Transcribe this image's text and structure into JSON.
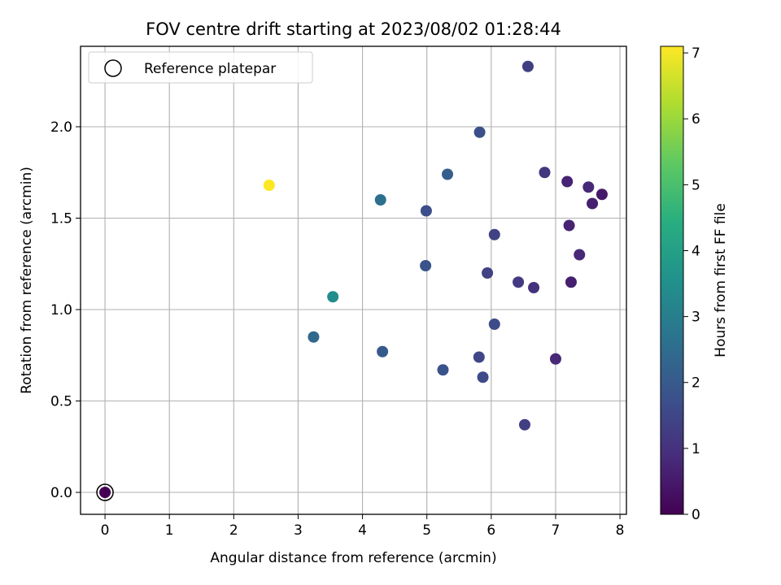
{
  "chart_data": {
    "type": "scatter",
    "title": "FOV centre drift starting at 2023/08/02 01:28:44",
    "xlabel": "Angular distance from reference (arcmin)",
    "ylabel": "Rotation from reference (arcmin)",
    "xlim": [
      -0.38,
      8.1
    ],
    "ylim": [
      -0.12,
      2.44
    ],
    "xticks": [
      "0",
      "1",
      "2",
      "3",
      "4",
      "5",
      "6",
      "7",
      "8"
    ],
    "yticks": [
      "0.0",
      "0.5",
      "1.0",
      "1.5",
      "2.0"
    ],
    "grid": true,
    "legend": {
      "position": "top-left",
      "entries": [
        "Reference platepar"
      ]
    },
    "reference_point": {
      "x": 0.0,
      "y": 0.0,
      "hours": 0.0
    },
    "colorbar": {
      "label": "Hours from first FF file",
      "range": [
        0,
        7.1
      ],
      "ticks": [
        "0",
        "1",
        "2",
        "3",
        "4",
        "5",
        "6",
        "7"
      ],
      "colormap": "viridis"
    },
    "points": [
      {
        "x": 6.57,
        "y": 2.33,
        "hours": 1.3
      },
      {
        "x": 5.82,
        "y": 1.97,
        "hours": 1.7
      },
      {
        "x": 6.83,
        "y": 1.75,
        "hours": 1.1
      },
      {
        "x": 5.32,
        "y": 1.74,
        "hours": 2.1
      },
      {
        "x": 7.18,
        "y": 1.7,
        "hours": 0.7
      },
      {
        "x": 2.55,
        "y": 1.68,
        "hours": 7.1
      },
      {
        "x": 7.51,
        "y": 1.67,
        "hours": 0.8
      },
      {
        "x": 7.72,
        "y": 1.63,
        "hours": 0.5
      },
      {
        "x": 4.28,
        "y": 1.6,
        "hours": 2.6
      },
      {
        "x": 7.57,
        "y": 1.58,
        "hours": 0.6
      },
      {
        "x": 4.99,
        "y": 1.54,
        "hours": 1.7
      },
      {
        "x": 7.21,
        "y": 1.46,
        "hours": 0.7
      },
      {
        "x": 6.05,
        "y": 1.41,
        "hours": 1.4
      },
      {
        "x": 7.37,
        "y": 1.3,
        "hours": 0.8
      },
      {
        "x": 4.98,
        "y": 1.24,
        "hours": 1.8
      },
      {
        "x": 5.94,
        "y": 1.2,
        "hours": 1.4
      },
      {
        "x": 6.42,
        "y": 1.15,
        "hours": 1.2
      },
      {
        "x": 7.24,
        "y": 1.15,
        "hours": 0.6
      },
      {
        "x": 6.66,
        "y": 1.12,
        "hours": 1.0
      },
      {
        "x": 3.54,
        "y": 1.07,
        "hours": 3.4
      },
      {
        "x": 6.05,
        "y": 0.92,
        "hours": 1.6
      },
      {
        "x": 3.24,
        "y": 0.85,
        "hours": 2.4
      },
      {
        "x": 4.31,
        "y": 0.77,
        "hours": 2.0
      },
      {
        "x": 5.81,
        "y": 0.74,
        "hours": 1.5
      },
      {
        "x": 7.0,
        "y": 0.73,
        "hours": 0.8
      },
      {
        "x": 5.25,
        "y": 0.67,
        "hours": 1.8
      },
      {
        "x": 5.87,
        "y": 0.63,
        "hours": 1.6
      },
      {
        "x": 6.52,
        "y": 0.37,
        "hours": 1.3
      }
    ]
  }
}
